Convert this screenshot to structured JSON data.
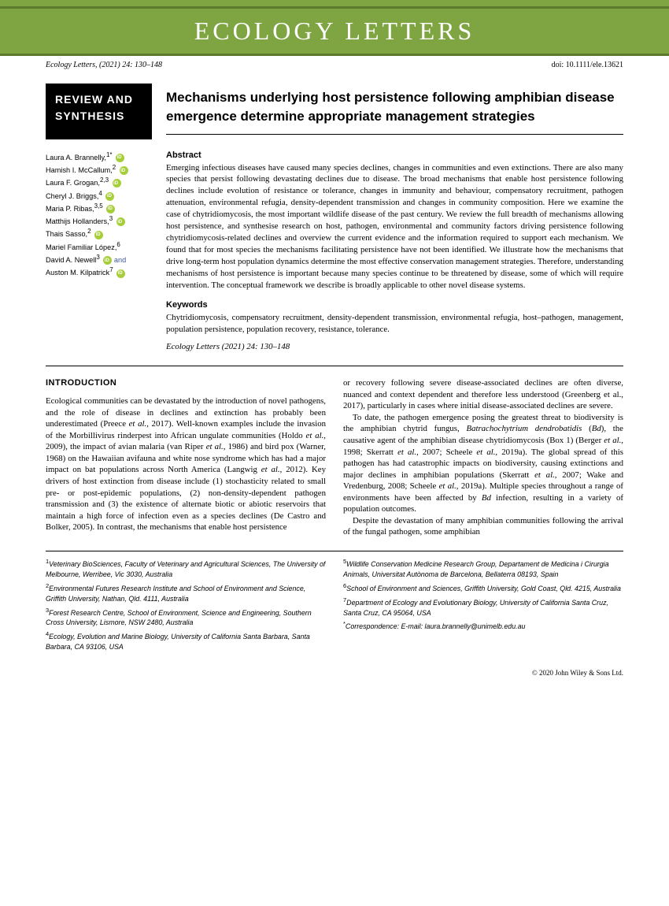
{
  "journal": {
    "name": "ECOLOGY LETTERS",
    "citation_left": "Ecology Letters, (2021) 24: 130–148",
    "doi": "doi: 10.1111/ele.13621"
  },
  "badge": {
    "line1": "REVIEW AND",
    "line2": "SYNTHESIS"
  },
  "title": "Mechanisms underlying host persistence following amphibian disease emergence determine appropriate management strategies",
  "authors": [
    {
      "name": "Laura A. Brannelly,",
      "aff": "1",
      "mark": "*",
      "orcid": true
    },
    {
      "name": "Hamish I. McCallum,",
      "aff": "2",
      "orcid": true
    },
    {
      "name": "Laura F. Grogan,",
      "aff": "2,3",
      "orcid": true
    },
    {
      "name": "Cheryl J. Briggs,",
      "aff": "4",
      "orcid": true
    },
    {
      "name": "Maria P. Ribas,",
      "aff": "3,5",
      "orcid": true
    },
    {
      "name": "Matthijs Hollanders,",
      "aff": "3",
      "orcid": true
    },
    {
      "name": "Thais Sasso,",
      "aff": "2",
      "orcid": true
    },
    {
      "name": "Mariel Familiar López,",
      "aff": "6",
      "orcid": false
    },
    {
      "name": "David A. Newell",
      "aff": "3",
      "orcid": true,
      "suffix": " and"
    },
    {
      "name": "Auston M. Kilpatrick",
      "aff": "7",
      "orcid": true
    }
  ],
  "abstract_heading": "Abstract",
  "abstract": "Emerging infectious diseases have caused many species declines, changes in communities and even extinctions. There are also many species that persist following devastating declines due to disease. The broad mechanisms that enable host persistence following declines include evolution of resistance or tolerance, changes in immunity and behaviour, compensatory recruitment, pathogen attenuation, environmental refugia, density-dependent transmission and changes in community composition. Here we examine the case of chytridiomycosis, the most important wildlife disease of the past century. We review the full breadth of mechanisms allowing host persistence, and synthesise research on host, pathogen, environmental and community factors driving persistence following chytridiomycosis-related declines and overview the current evidence and the information required to support each mechanism. We found that for most species the mechanisms facilitating persistence have not been identified. We illustrate how the mechanisms that drive long-term host population dynamics determine the most effective conservation management strategies. Therefore, understanding mechanisms of host persistence is important because many species continue to be threatened by disease, some of which will require intervention. The conceptual framework we describe is broadly applicable to other novel disease systems.",
  "keywords_heading": "Keywords",
  "keywords": "Chytridiomycosis, compensatory recruitment, density-dependent transmission, environmental refugia, host–pathogen, management, population persistence, population recovery, resistance, tolerance.",
  "cite_line": "Ecology Letters (2021) 24: 130–148",
  "intro_heading": "INTRODUCTION",
  "body": {
    "col1_p1": "Ecological communities can be devastated by the introduction of novel pathogens, and the role of disease in declines and extinction has probably been underestimated (Preece et al., 2017). Well-known examples include the invasion of the Morbillivirus rinderpest into African ungulate communities (Holdo et al., 2009), the impact of avian malaria (van Riper et al., 1986) and bird pox (Warner, 1968) on the Hawaiian avifauna and white nose syndrome which has had a major impact on bat populations across North America (Langwig et al., 2012). Key drivers of host extinction from disease include (1) stochasticity related to small pre- or post-epidemic populations, (2) non-density-dependent pathogen transmission and (3) the existence of alternate biotic or abiotic reservoirs that maintain a high force of infection even as a species declines (De Castro and Bolker, 2005). In contrast, the mechanisms that enable host persistence",
    "col2_p1": "or recovery following severe disease-associated declines are often diverse, nuanced and context dependent and therefore less understood (Greenberg et al., 2017), particularly in cases where initial disease-associated declines are severe.",
    "col2_p2": "To date, the pathogen emergence posing the greatest threat to biodiversity is the amphibian chytrid fungus, Batrachochytrium dendrobatidis (Bd), the causative agent of the amphibian disease chytridiomycosis (Box 1) (Berger et al., 1998; Skerratt et al., 2007; Scheele et al., 2019a). The global spread of this pathogen has had catastrophic impacts on biodiversity, causing extinctions and major declines in amphibian populations (Skerratt et al., 2007; Wake and Vredenburg, 2008; Scheele et al., 2019a). Multiple species throughout a range of environments have been affected by Bd infection, resulting in a variety of population outcomes.",
    "col2_p3": "Despite the devastation of many amphibian communities following the arrival of the fungal pathogen, some amphibian"
  },
  "affiliations": {
    "left": [
      "1Veterinary BioSciences, Faculty of Veterinary and Agricultural Sciences, The University of Melbourne, Werribee, Vic 3030, Australia",
      "2Environmental Futures Research Institute and School of Environment and Science, Griffith University, Nathan, Qld. 4111, Australia",
      "3Forest Research Centre, School of Environment, Science and Engineering, Southern Cross University, Lismore, NSW 2480, Australia",
      "4Ecology, Evolution and Marine Biology, University of California Santa Barbara, Santa Barbara, CA 93106, USA"
    ],
    "right": [
      "5Wildlife Conservation Medicine Research Group, Departament de Medicina i Cirurgia Animals, Universitat Autònoma de Barcelona, Bellaterra 08193, Spain",
      "6School of Environment and Sciences, Griffith University, Gold Coast, Qld. 4215, Australia",
      "7Department of Ecology and Evolutionary Biology, University of California Santa Cruz, Santa Cruz, CA 95064, USA",
      "*Correspondence: E-mail: laura.brannelly@unimelb.edu.au"
    ]
  },
  "footer": "© 2020 John Wiley & Sons Ltd."
}
